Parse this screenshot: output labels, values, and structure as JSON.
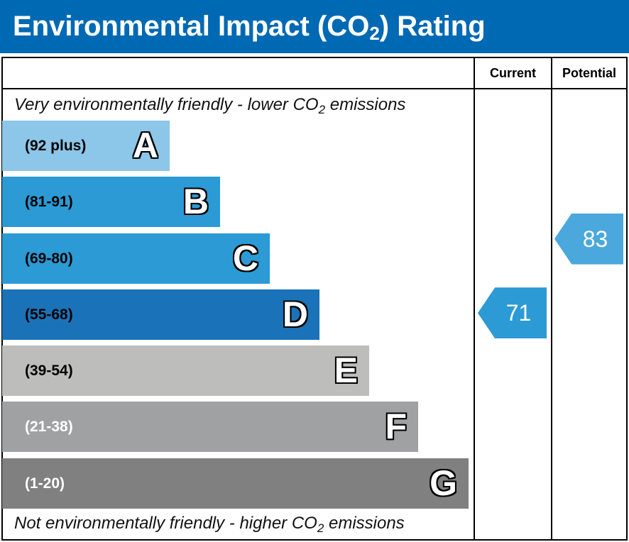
{
  "chart_data": {
    "type": "bar",
    "title": "Environmental Impact (CO2) Rating",
    "title_parts": {
      "pre": "Environmental Impact (CO",
      "sub": "2",
      "post": ") Rating"
    },
    "columns": {
      "current": "Current",
      "potential": "Potential"
    },
    "top_note": {
      "pre": "Very environmentally friendly - lower CO",
      "sub": "2",
      "post": " emissions"
    },
    "bottom_note": {
      "pre": "Not environmentally friendly - higher CO",
      "sub": "2",
      "post": " emissions"
    },
    "bands": [
      {
        "letter": "A",
        "range": "(92 plus)",
        "color": "#8cc6e8",
        "text_color": "#000000"
      },
      {
        "letter": "B",
        "range": "(81-91)",
        "color": "#2b9ad5",
        "text_color": "#000000"
      },
      {
        "letter": "C",
        "range": "(69-80)",
        "color": "#2b9ad5",
        "text_color": "#000000"
      },
      {
        "letter": "D",
        "range": "(55-68)",
        "color": "#1a73b8",
        "text_color": "#000000"
      },
      {
        "letter": "E",
        "range": "(39-54)",
        "color": "#bdbdbc",
        "text_color": "#000000"
      },
      {
        "letter": "F",
        "range": "(21-38)",
        "color": "#a0a1a3",
        "text_color": "#ffffff"
      },
      {
        "letter": "G",
        "range": "(1-20)",
        "color": "#808080",
        "text_color": "#ffffff"
      }
    ],
    "current": {
      "value": 71,
      "band": "C",
      "color": "#2b9ad5"
    },
    "potential": {
      "value": 83,
      "band": "B",
      "color": "#4aa8dc"
    }
  }
}
